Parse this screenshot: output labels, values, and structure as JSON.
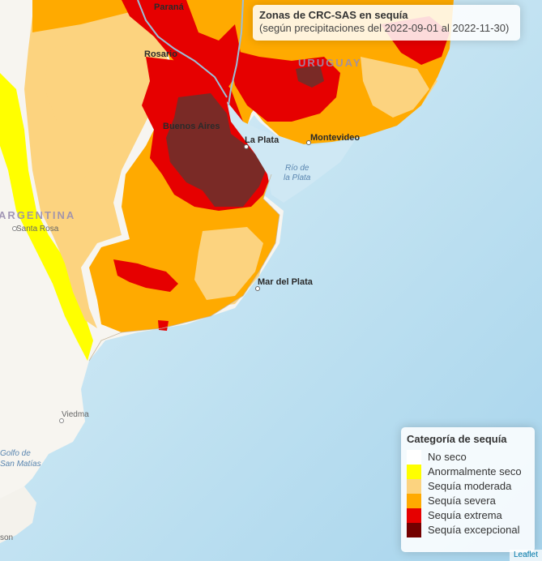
{
  "info": {
    "title": "Zonas de CRC-SAS en sequía",
    "subtitle": "(según precipitaciones del 2022-09-01 al 2022-11-30)"
  },
  "legend": {
    "title": "Categoría de sequía",
    "items": [
      {
        "label": "No seco",
        "color": "#ffffff"
      },
      {
        "label": "Anormalmente seco",
        "color": "#ffff00"
      },
      {
        "label": "Sequía moderada",
        "color": "#fcd37f"
      },
      {
        "label": "Sequía severa",
        "color": "#ffaa00"
      },
      {
        "label": "Sequía extrema",
        "color": "#e60000"
      },
      {
        "label": "Sequía excepcional",
        "color": "#730000"
      }
    ]
  },
  "map_labels": {
    "parana": "Paraná",
    "rosario": "Rosario",
    "uruguay": "URUGUAY",
    "buenos_aires": "Buenos Aires",
    "la_plata": "La Plata",
    "montevideo": "Montevideo",
    "rio_de_la_plata_1": "Río de",
    "rio_de_la_plata_2": "la Plata",
    "argentina": "ARGENTINA",
    "santa_rosa": "Santa Rosa",
    "mar_del_plata": "Mar del Plata",
    "viedma": "Viedma",
    "golfo_1": "Golfo de",
    "golfo_2": "San Matías",
    "son": "son"
  },
  "attribution": "Leaflet"
}
